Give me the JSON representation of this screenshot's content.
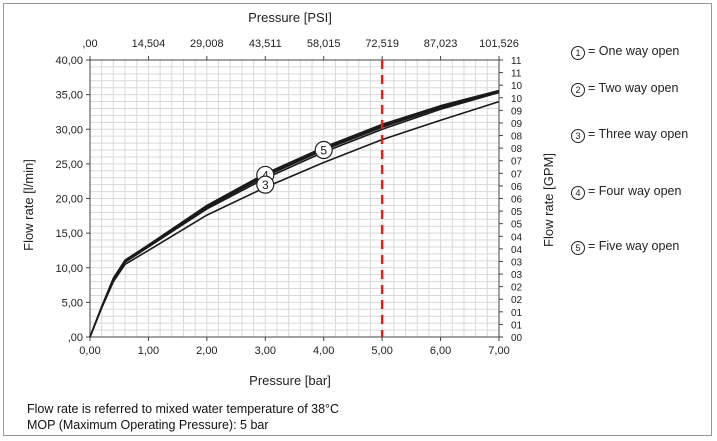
{
  "chart_data": {
    "type": "line",
    "title": "",
    "xlabel": "Pressure [bar]",
    "ylabel": "Flow rate [l/min]",
    "x2label": "Pressure [PSI]",
    "y2label": "Flow rate [GPM]",
    "xlim": [
      0,
      7
    ],
    "ylim": [
      0,
      40
    ],
    "x2lim": [
      0,
      101.526
    ],
    "y2lim": [
      0,
      11
    ],
    "x_ticks": [
      "0,00",
      "1,00",
      "2,00",
      "3,00",
      "4,00",
      "5,00",
      "6,00",
      "7,00"
    ],
    "y_ticks": [
      ",00",
      "5,00",
      "10,00",
      "15,00",
      "20,00",
      "25,00",
      "30,00",
      "35,00",
      "40,00"
    ],
    "x2_ticks": [
      ",00",
      "14,504",
      "29,008",
      "43,511",
      "58,015",
      "72,519",
      "87,023",
      "101,526"
    ],
    "y2_ticks": [
      "00",
      "01",
      "01",
      "02",
      "02",
      "03",
      "03",
      "04",
      "04",
      "05",
      "05",
      "06",
      "06",
      "07",
      "07",
      "08",
      "08",
      "09",
      "09",
      "10",
      "10",
      "11",
      "11"
    ],
    "grid": true,
    "series": [
      {
        "name": "1",
        "x": [
          0,
          0.2,
          0.4,
          0.6,
          1,
          2,
          3,
          4,
          5,
          6,
          7
        ],
        "y": [
          0,
          4.2,
          8.0,
          10.5,
          12.5,
          17.6,
          21.6,
          25.2,
          28.5,
          31.3,
          34.0
        ]
      },
      {
        "name": "2",
        "x": [
          0,
          0.2,
          0.4,
          0.6,
          1,
          2,
          3,
          4,
          5,
          6,
          7
        ],
        "y": [
          0,
          4.3,
          8.2,
          10.8,
          13.0,
          18.5,
          22.9,
          26.7,
          30.0,
          32.9,
          35.3
        ]
      },
      {
        "name": "3",
        "x": [
          0,
          0.2,
          0.4,
          0.6,
          1,
          2,
          3,
          4,
          5,
          6,
          7
        ],
        "y": [
          0,
          4.3,
          8.3,
          10.9,
          13.1,
          18.7,
          23.2,
          27.0,
          30.3,
          33.1,
          35.4
        ]
      },
      {
        "name": "4",
        "x": [
          0,
          0.2,
          0.4,
          0.6,
          1,
          2,
          3,
          4,
          5,
          6,
          7
        ],
        "y": [
          0,
          4.4,
          8.4,
          11.0,
          13.2,
          18.8,
          23.4,
          27.2,
          30.5,
          33.2,
          35.5
        ]
      },
      {
        "name": "5",
        "x": [
          0,
          0.2,
          0.4,
          0.6,
          1,
          2,
          3,
          4,
          5,
          6,
          7
        ],
        "y": [
          0,
          4.4,
          8.5,
          11.1,
          13.3,
          19.0,
          23.6,
          27.4,
          30.7,
          33.4,
          35.6
        ]
      }
    ],
    "markers": [
      {
        "label": "4",
        "x": 3.0,
        "y": 23.4
      },
      {
        "label": "3",
        "x": 3.0,
        "y": 22.0
      },
      {
        "label": "5",
        "x": 4.0,
        "y": 27.0
      }
    ],
    "reference_line": {
      "x": 5.0,
      "color": "#e0201b",
      "style": "dashed"
    },
    "legend": [
      {
        "num": "1",
        "text": "= One way open"
      },
      {
        "num": "2",
        "text": "= Two way open"
      },
      {
        "num": "3",
        "text": "= Three way open"
      },
      {
        "num": "4",
        "text": "= Four way open"
      },
      {
        "num": "5",
        "text": "= Five way open"
      }
    ],
    "legend_position": "right"
  },
  "notes": {
    "line1": "Flow rate is referred to mixed water temperature of 38°C",
    "line2": "MOP (Maximum Operating Pressure): 5 bar"
  },
  "colors": {
    "curve": "#1a1a1a",
    "reference": "#e0201b",
    "grid": "#d9d9d9"
  }
}
